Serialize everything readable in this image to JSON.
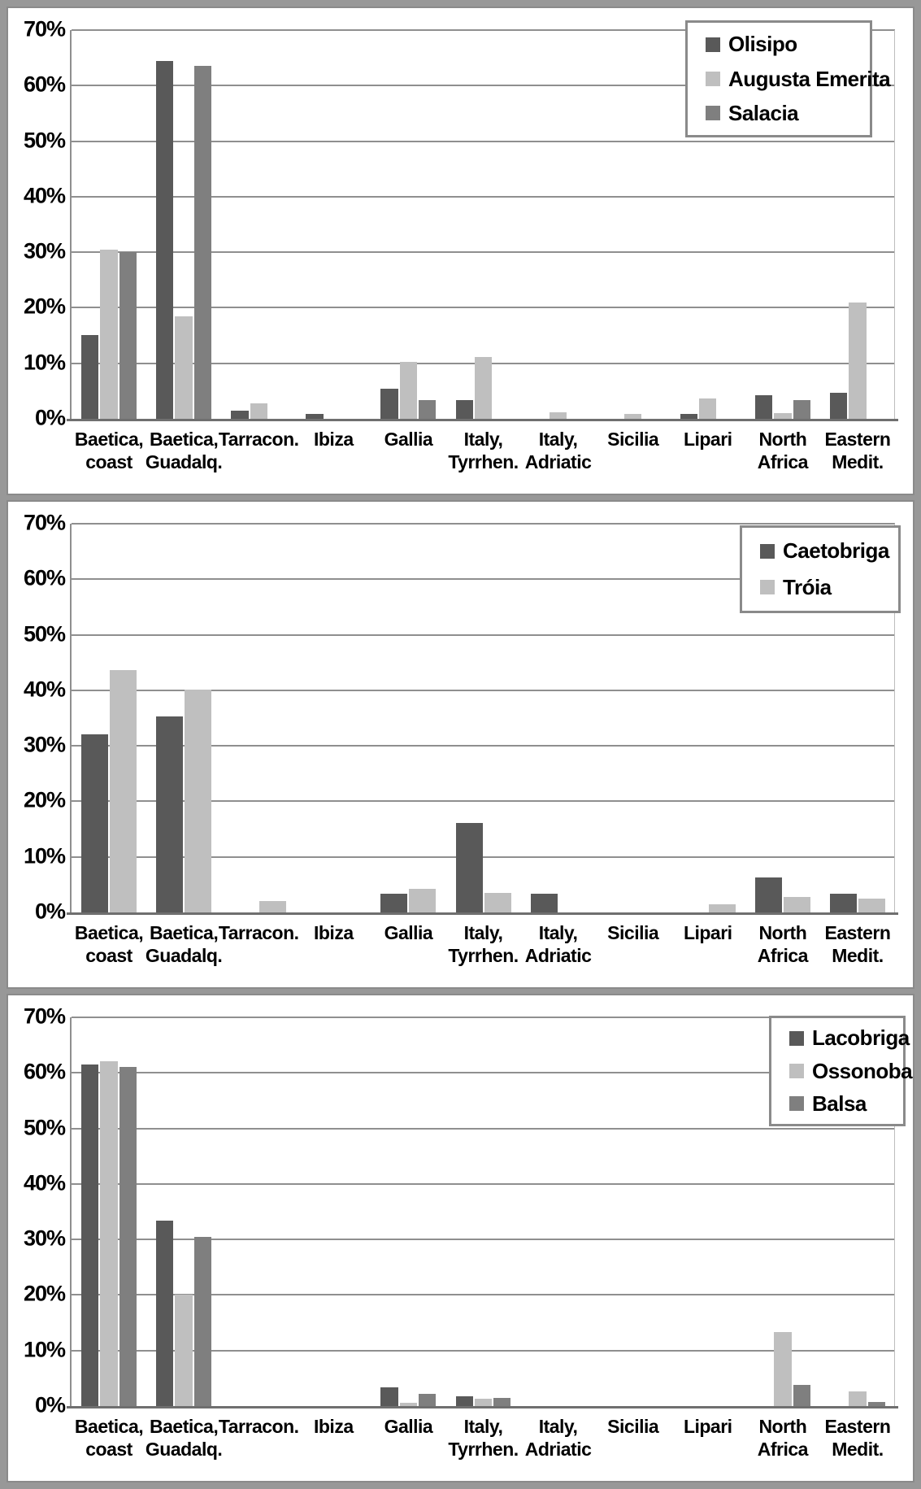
{
  "y_axis": {
    "tick_labels": [
      "70%",
      "60%",
      "50%",
      "40%",
      "30%",
      "20%",
      "10%",
      "0%"
    ],
    "max": 70
  },
  "categories_display": [
    [
      "Baetica,",
      "coast"
    ],
    [
      "Baetica,",
      "Guadalq."
    ],
    [
      "Tarracon.",
      ""
    ],
    [
      "Ibiza",
      ""
    ],
    [
      "Gallia",
      ""
    ],
    [
      "Italy,",
      "Tyrrhen."
    ],
    [
      "Italy,",
      "Adriatic"
    ],
    [
      "Sicilia",
      ""
    ],
    [
      "Lipari",
      ""
    ],
    [
      "North",
      "Africa"
    ],
    [
      "Eastern",
      "Medit."
    ]
  ],
  "colors": {
    "dark": "#595959",
    "light": "#bfbfbf",
    "medium": "#7f7f7f"
  },
  "chart_data": [
    {
      "type": "bar",
      "title": "",
      "ylim": [
        0,
        70
      ],
      "grid": true,
      "legend_position": "top-right",
      "categories": [
        "Baetica, coast",
        "Baetica, Guadalq.",
        "Tarracon.",
        "Ibiza",
        "Gallia",
        "Italy, Tyrrhen.",
        "Italy, Adriatic",
        "Sicilia",
        "Lipari",
        "North Africa",
        "Eastern Medit."
      ],
      "series": [
        {
          "name": "Olisipo",
          "color": "#595959",
          "values": [
            15.1,
            64.4,
            1.5,
            0.9,
            5.4,
            3.3,
            0,
            0,
            0.9,
            4.2,
            4.7
          ]
        },
        {
          "name": "Augusta Emerita",
          "color": "#bfbfbf",
          "values": [
            30.4,
            18.4,
            2.8,
            0,
            10.3,
            11.2,
            1.2,
            0.9,
            3.6,
            1.0,
            20.9
          ]
        },
        {
          "name": "Salacia",
          "color": "#7f7f7f",
          "values": [
            30.0,
            63.5,
            0,
            0,
            3.4,
            0,
            0,
            0,
            0,
            3.3,
            0
          ]
        }
      ]
    },
    {
      "type": "bar",
      "title": "",
      "ylim": [
        0,
        70
      ],
      "grid": true,
      "legend_position": "top-right",
      "categories": [
        "Baetica, coast",
        "Baetica, Guadalq.",
        "Tarracon.",
        "Ibiza",
        "Gallia",
        "Italy, Tyrrhen.",
        "Italy, Adriatic",
        "Sicilia",
        "Lipari",
        "North Africa",
        "Eastern Medit."
      ],
      "series": [
        {
          "name": "Caetobriga",
          "color": "#595959",
          "values": [
            32.1,
            35.3,
            0,
            0,
            3.3,
            16.1,
            3.3,
            0,
            0,
            6.3,
            3.3
          ]
        },
        {
          "name": "Tróia",
          "color": "#bfbfbf",
          "values": [
            43.7,
            40.2,
            2.0,
            0,
            4.2,
            3.5,
            0,
            0,
            1.4,
            2.8,
            2.5
          ]
        }
      ]
    },
    {
      "type": "bar",
      "title": "",
      "ylim": [
        0,
        70
      ],
      "grid": true,
      "legend_position": "top-right",
      "categories": [
        "Baetica, coast",
        "Baetica, Guadalq.",
        "Tarracon.",
        "Ibiza",
        "Gallia",
        "Italy, Tyrrhen.",
        "Italy, Adriatic",
        "Sicilia",
        "Lipari",
        "North Africa",
        "Eastern Medit."
      ],
      "series": [
        {
          "name": "Lacobriga",
          "color": "#595959",
          "values": [
            61.5,
            33.4,
            0,
            0,
            3.3,
            1.7,
            0,
            0,
            0,
            0,
            0
          ]
        },
        {
          "name": "Ossonoba",
          "color": "#bfbfbf",
          "values": [
            62.1,
            20.0,
            0,
            0,
            0.6,
            1.3,
            0,
            0,
            0,
            13.4,
            2.6
          ]
        },
        {
          "name": "Balsa",
          "color": "#7f7f7f",
          "values": [
            61.1,
            30.5,
            0,
            0,
            2.2,
            1.5,
            0,
            0,
            0,
            3.8,
            0.7
          ]
        }
      ]
    }
  ]
}
